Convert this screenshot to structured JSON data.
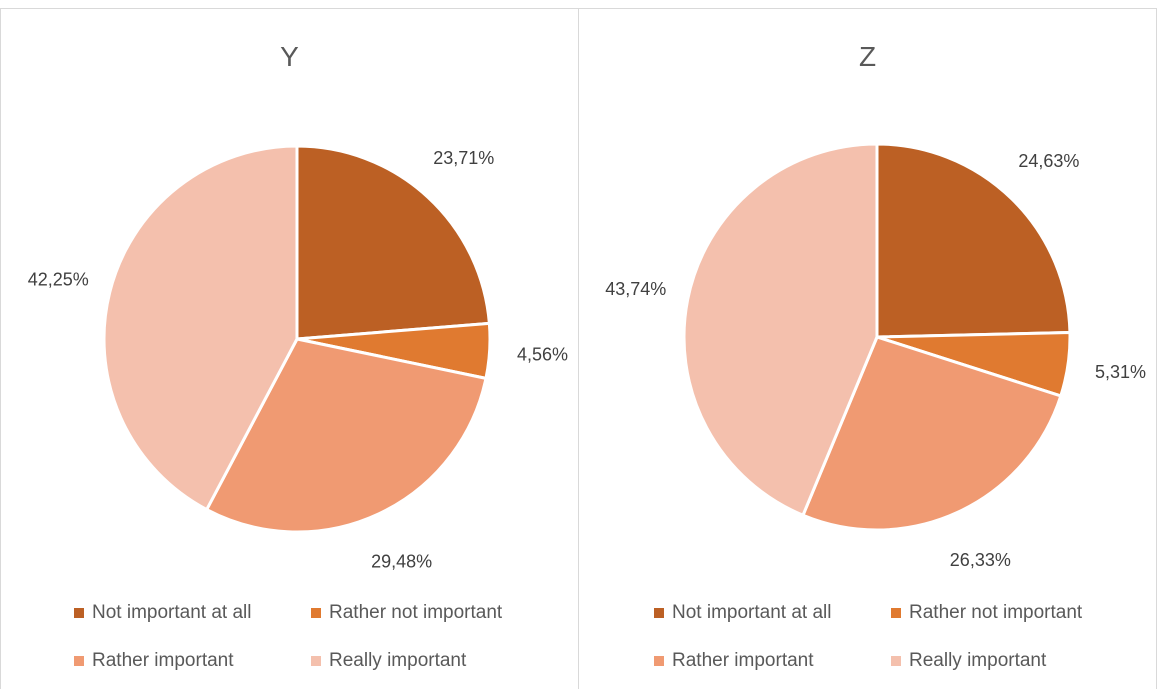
{
  "colors": {
    "not_important_at_all": "#BC6024",
    "rather_not_important": "#E07A30",
    "rather_important": "#F09A72",
    "really_important": "#F4C0AD"
  },
  "legend": [
    {
      "label": "Not important at all",
      "color": "#BC6024"
    },
    {
      "label": "Rather not important",
      "color": "#E07A30"
    },
    {
      "label": "Rather important",
      "color": "#F09A72"
    },
    {
      "label": "Really important",
      "color": "#F4C0AD"
    }
  ],
  "chart_data": [
    {
      "type": "pie",
      "title": "Y",
      "categories": [
        "Not important at all",
        "Rather not important",
        "Rather important",
        "Really important"
      ],
      "values": [
        23.71,
        4.56,
        29.48,
        42.25
      ],
      "labels": [
        "23,71%",
        "4,56%",
        "29,48%",
        "42,25%"
      ],
      "legend_position": "bottom"
    },
    {
      "type": "pie",
      "title": "Z",
      "categories": [
        "Not important at all",
        "Rather not important",
        "Rather important",
        "Really important"
      ],
      "values": [
        24.63,
        5.31,
        26.33,
        43.74
      ],
      "labels": [
        "24,63%",
        "5,31%",
        "26,33%",
        "43,74%"
      ],
      "legend_position": "bottom"
    }
  ]
}
